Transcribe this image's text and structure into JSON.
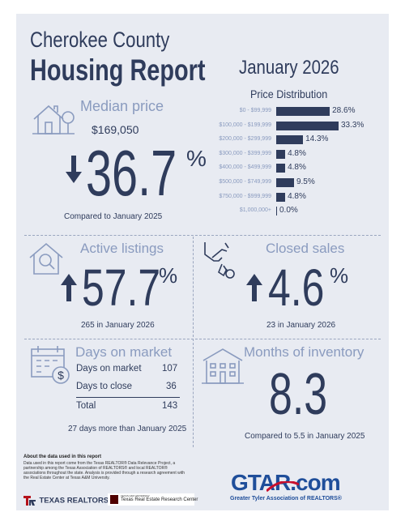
{
  "header": {
    "title_line1": "Cherokee County",
    "title_line2": "Housing Report",
    "period": "January 2026"
  },
  "median_price": {
    "label": "Median price",
    "value": "$169,050",
    "change": "36.7",
    "percent_sign": "%",
    "direction": "down",
    "comparison": "Compared to January 2025"
  },
  "price_distribution": {
    "title": "Price Distribution",
    "chart_data": {
      "type": "bar",
      "categories": [
        "$0 - $99,999",
        "$100,000 - $199,999",
        "$200,000 - $299,999",
        "$300,000 - $399,999",
        "$400,000 - $499,999",
        "$500,000 - $749,999",
        "$750,000 - $999,999",
        "$1,000,000+"
      ],
      "values": [
        28.6,
        33.3,
        14.3,
        4.8,
        4.8,
        9.5,
        4.8,
        0.0
      ],
      "value_labels": [
        "28.6%",
        "33.3%",
        "14.3%",
        "4.8%",
        "4.8%",
        "9.5%",
        "4.8%",
        "0.0%"
      ],
      "orientation": "horizontal",
      "xlim": [
        0,
        33.3
      ]
    }
  },
  "active_listings": {
    "label": "Active listings",
    "change": "57.7",
    "percent_sign": "%",
    "direction": "up",
    "detail": "265 in January 2026"
  },
  "closed_sales": {
    "label": "Closed sales",
    "change": "4.6",
    "percent_sign": "%",
    "direction": "up",
    "detail": "23 in January 2026"
  },
  "days_on_market": {
    "label": "Days on market",
    "rows": [
      {
        "label": "Days on market",
        "value": "107"
      },
      {
        "label": "Days to close",
        "value": "36"
      }
    ],
    "total_label": "Total",
    "total_value": "143",
    "comparison": "27 days more than January 2025"
  },
  "months_inventory": {
    "label": "Months of inventory",
    "value": "8.3",
    "comparison": "Compared to 5.5 in January 2025"
  },
  "footer": {
    "about_title": "About the data used in this report",
    "about_text": "Data used in this report come from the Texas REALTOR® Data Relevance Project, a partnership among the Texas Association of REALTORS® and local REALTOR® associations throughout the state. Analysis is provided through a research agreement with the Real Estate Center at Texas A&M University.",
    "texas_realtors_logo": "TEXAS REALTORS",
    "research_center_small": "TEXAS A&M UNIVERSITY",
    "research_center_name": "Texas Real Estate Research Center",
    "gtar_logo": "GTAR.com",
    "gtar_tagline": "Greater Tyler Association of REALTORS®"
  },
  "colors": {
    "navy": "#2f3c5c",
    "steel": "#8a9bbf",
    "background": "#e8ebf2",
    "gtar_blue": "#1f4e9a",
    "gtar_red": "#c8102e",
    "tx_red": "#b5121b"
  }
}
